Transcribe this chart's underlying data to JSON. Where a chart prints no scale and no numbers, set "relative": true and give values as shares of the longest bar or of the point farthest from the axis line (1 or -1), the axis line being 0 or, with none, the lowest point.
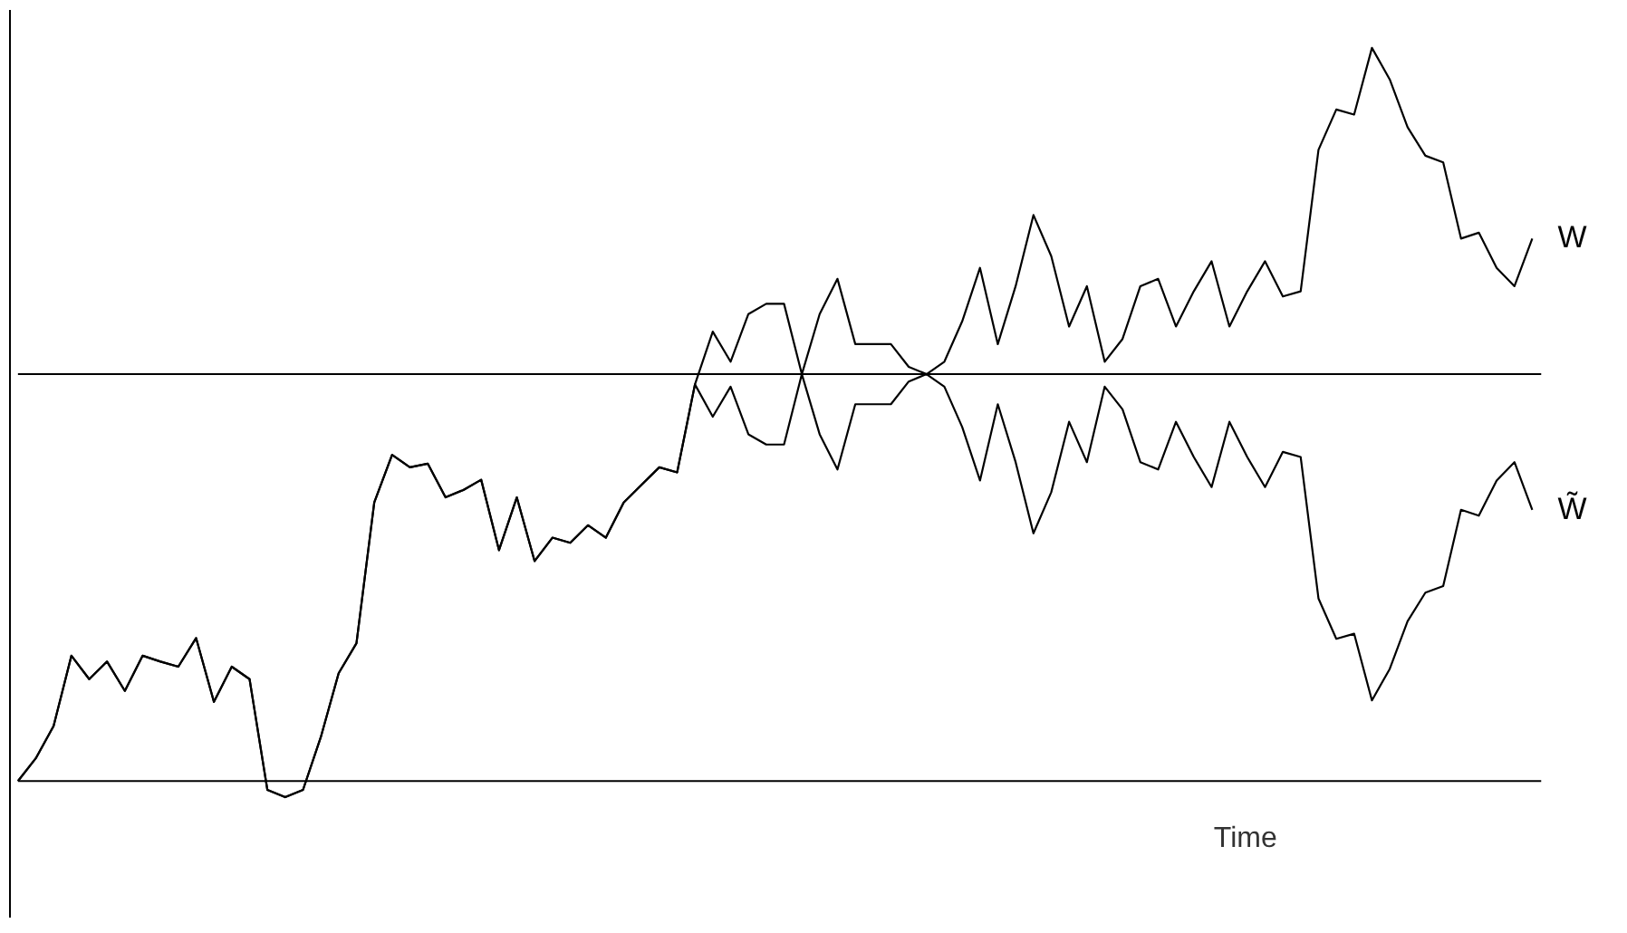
{
  "chart_data": {
    "type": "line",
    "relative": true,
    "xlabel": "Time",
    "line_style": "solid",
    "marker": "none",
    "categories": [
      null,
      null,
      null,
      null,
      null,
      null,
      null,
      null,
      null,
      null,
      null,
      null,
      null,
      null,
      null,
      null,
      null,
      null,
      null,
      null,
      null,
      null,
      null,
      null,
      null,
      null,
      null,
      null,
      null,
      null,
      null,
      null,
      null,
      null,
      null,
      null,
      null,
      null,
      null,
      null,
      null,
      null,
      null,
      null,
      null,
      null,
      null,
      null,
      null,
      null,
      null,
      null,
      null,
      null,
      null,
      null,
      null,
      null,
      null,
      null,
      null,
      null,
      null,
      null,
      null,
      null,
      null,
      null,
      null,
      null,
      null,
      null,
      null,
      null,
      null,
      null,
      null,
      null,
      null,
      null,
      null,
      null,
      null,
      null,
      null,
      null
    ],
    "series": [
      {
        "name": "W",
        "color": "#000000",
        "values": [
          0,
          0.031,
          0.075,
          0.171,
          0.139,
          0.163,
          0.123,
          0.171,
          0.163,
          0.156,
          0.195,
          0.108,
          0.156,
          0.139,
          -0.012,
          -0.022,
          -0.012,
          0.06,
          0.147,
          0.188,
          0.38,
          0.445,
          0.428,
          0.433,
          0.387,
          0.397,
          0.411,
          0.315,
          0.387,
          0.3,
          0.332,
          0.325,
          0.349,
          0.332,
          0.38,
          0.404,
          0.428,
          0.421,
          0.541,
          0.613,
          0.572,
          0.637,
          0.651,
          0.651,
          0.555,
          0.637,
          0.685,
          0.596,
          0.596,
          0.596,
          0.565,
          0.555,
          0.572,
          0.627,
          0.7,
          0.596,
          0.675,
          0.772,
          0.716,
          0.62,
          0.675,
          0.572,
          0.603,
          0.675,
          0.685,
          0.62,
          0.668,
          0.709,
          0.62,
          0.668,
          0.709,
          0.661,
          0.668,
          0.861,
          0.916,
          0.909,
          1.0,
          0.957,
          0.892,
          0.853,
          0.844,
          0.74,
          0.748,
          0.7,
          0.675,
          0.74
        ]
      },
      {
        "name": "W̃",
        "color": "#000000",
        "values": [
          0,
          0.031,
          0.075,
          0.171,
          0.139,
          0.163,
          0.123,
          0.171,
          0.163,
          0.156,
          0.195,
          0.108,
          0.156,
          0.139,
          -0.012,
          -0.022,
          -0.012,
          0.06,
          0.147,
          0.188,
          0.38,
          0.445,
          0.428,
          0.433,
          0.387,
          0.397,
          0.411,
          0.315,
          0.387,
          0.3,
          0.332,
          0.325,
          0.349,
          0.332,
          0.38,
          0.404,
          0.428,
          0.421,
          0.541,
          0.497,
          0.538,
          0.473,
          0.459,
          0.459,
          0.555,
          0.473,
          0.425,
          0.514,
          0.514,
          0.514,
          0.545,
          0.555,
          0.538,
          0.483,
          0.41,
          0.514,
          0.435,
          0.338,
          0.394,
          0.49,
          0.435,
          0.538,
          0.507,
          0.435,
          0.425,
          0.49,
          0.442,
          0.401,
          0.49,
          0.442,
          0.401,
          0.449,
          0.442,
          0.249,
          0.194,
          0.201,
          0.11,
          0.153,
          0.218,
          0.257,
          0.266,
          0.37,
          0.362,
          0.41,
          0.435,
          0.37
        ]
      }
    ],
    "ref_lines": [
      {
        "axis": "y",
        "value": 0.555,
        "color": "#000000"
      }
    ]
  }
}
